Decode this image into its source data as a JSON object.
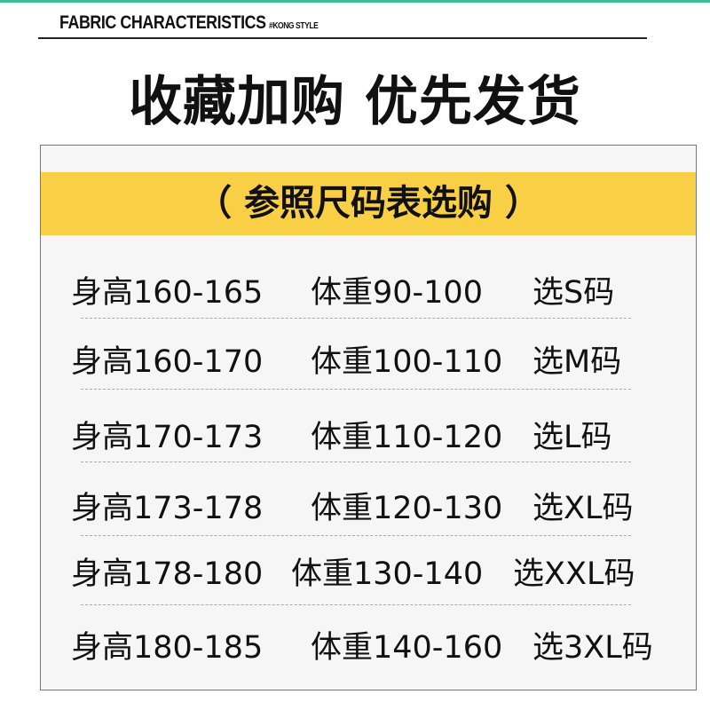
{
  "header": {
    "brand": "FABRIC CHARACTERISTICS",
    "tag": "#KONG STYLE",
    "headline": "收藏加购 优先发货"
  },
  "colors": {
    "accent_top": "#3dbd98",
    "band": "#f8cf45"
  },
  "table": {
    "title": "（  参照尺码表选购  ）",
    "rows": [
      {
        "height": "身高160-165",
        "weight": "体重90-100",
        "size": "选S码"
      },
      {
        "height": "身高160-170",
        "weight": "体重100-110",
        "size": "选M码"
      },
      {
        "height": "身高170-173",
        "weight": "体重110-120",
        "size": "选L码"
      },
      {
        "height": "身高173-178",
        "weight": "体重120-130",
        "size": "选XL码"
      },
      {
        "height": "身高178-180",
        "weight": "体重130-140",
        "size": "选XXL码"
      },
      {
        "height": "身高180-185",
        "weight": "体重140-160",
        "size": "选3XL码"
      }
    ]
  }
}
